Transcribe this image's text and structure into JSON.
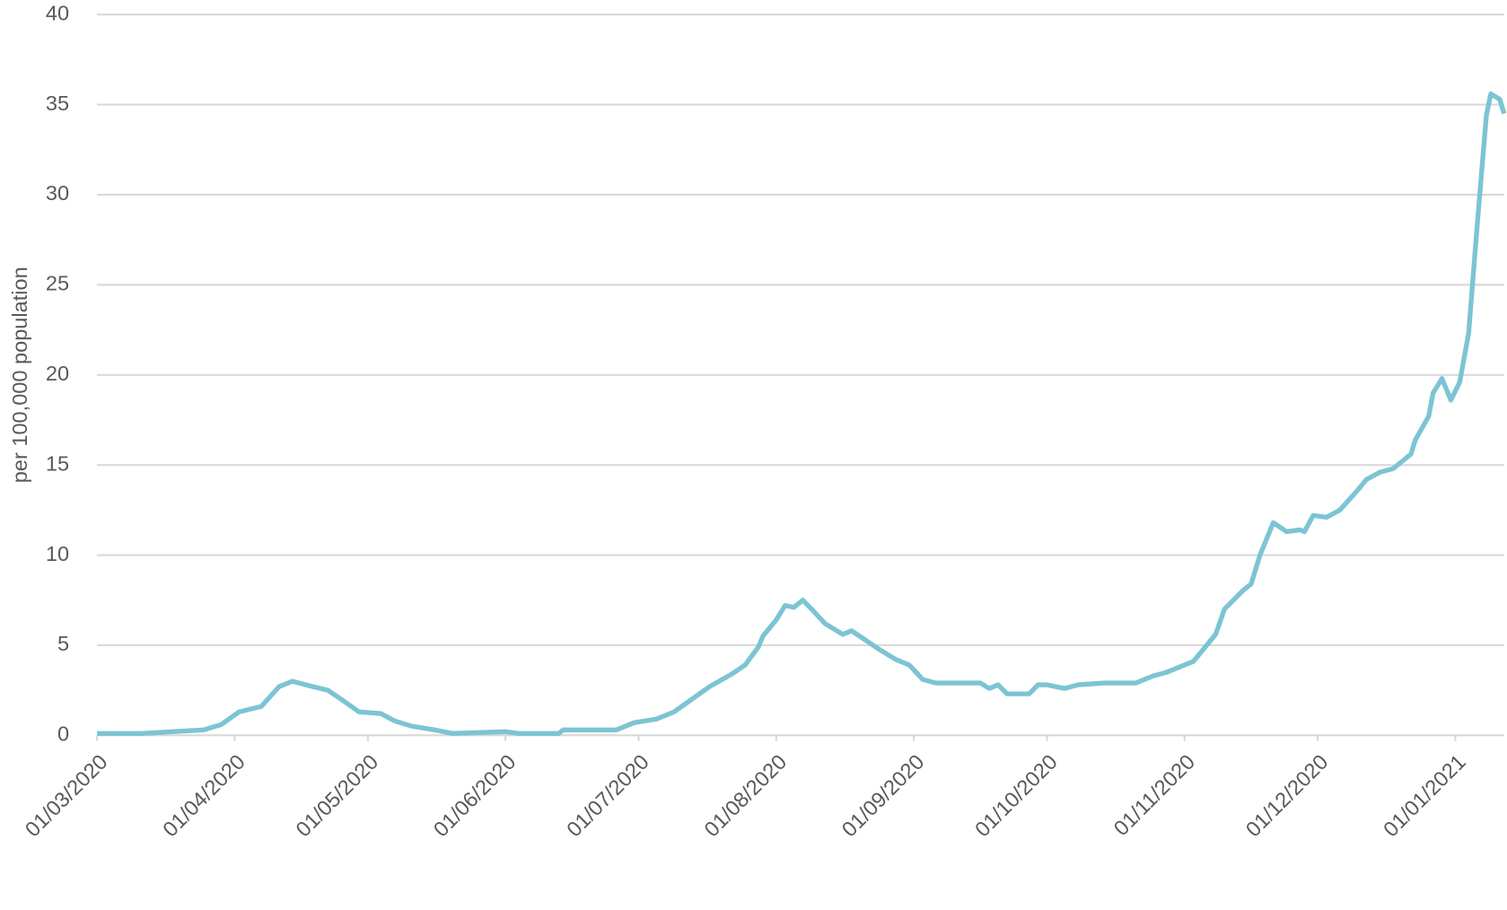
{
  "chart_data": {
    "type": "line",
    "y_label": "per 100,000 population",
    "x": [
      "01/03/2020",
      "11/03/2020",
      "25/03/2020",
      "29/03/2020",
      "02/04/2020",
      "07/04/2020",
      "11/04/2020",
      "14/04/2020",
      "17/04/2020",
      "22/04/2020",
      "25/04/2020",
      "29/04/2020",
      "04/05/2020",
      "07/05/2020",
      "11/05/2020",
      "16/05/2020",
      "20/05/2020",
      "01/06/2020",
      "04/06/2020",
      "13/06/2020",
      "14/06/2020",
      "26/06/2020",
      "30/06/2020",
      "05/07/2020",
      "09/07/2020",
      "13/07/2020",
      "17/07/2020",
      "22/07/2020",
      "25/07/2020",
      "28/07/2020",
      "29/07/2020",
      "01/08/2020",
      "03/08/2020",
      "05/08/2020",
      "07/08/2020",
      "09/08/2020",
      "12/08/2020",
      "16/08/2020",
      "18/08/2020",
      "21/08/2020",
      "24/08/2020",
      "28/08/2020",
      "31/08/2020",
      "03/09/2020",
      "06/09/2020",
      "16/09/2020",
      "18/09/2020",
      "20/09/2020",
      "22/09/2020",
      "27/09/2020",
      "29/09/2020",
      "01/10/2020",
      "05/10/2020",
      "08/10/2020",
      "14/10/2020",
      "21/10/2020",
      "25/10/2020",
      "28/10/2020",
      "01/11/2020",
      "03/11/2020",
      "06/11/2020",
      "08/11/2020",
      "10/11/2020",
      "14/11/2020",
      "16/11/2020",
      "18/11/2020",
      "20/11/2020",
      "21/11/2020",
      "24/11/2020",
      "27/11/2020",
      "28/11/2020",
      "30/11/2020",
      "03/12/2020",
      "06/12/2020",
      "10/12/2020",
      "12/12/2020",
      "15/12/2020",
      "18/12/2020",
      "22/12/2020",
      "23/12/2020",
      "26/12/2020",
      "27/12/2020",
      "29/12/2020",
      "31/12/2020",
      "02/01/2021",
      "04/01/2021",
      "06/01/2021",
      "08/01/2021",
      "09/01/2021",
      "11/01/2021",
      "12/01/2021"
    ],
    "series": [
      {
        "color": "#7cc4d4",
        "values": [
          0.1,
          0.1,
          0.3,
          0.6,
          1.3,
          1.6,
          2.7,
          3.0,
          2.8,
          2.5,
          2.0,
          1.3,
          1.2,
          0.8,
          0.5,
          0.3,
          0.1,
          0.2,
          0.1,
          0.1,
          0.3,
          0.3,
          0.7,
          0.9,
          1.3,
          2.0,
          2.7,
          3.4,
          3.9,
          4.9,
          5.5,
          6.4,
          7.2,
          7.1,
          7.5,
          7.0,
          6.2,
          5.6,
          5.8,
          5.3,
          4.8,
          4.2,
          3.9,
          3.1,
          2.9,
          2.9,
          2.6,
          2.8,
          2.3,
          2.3,
          2.8,
          2.8,
          2.6,
          2.8,
          2.9,
          2.9,
          3.3,
          3.5,
          3.9,
          4.1,
          5.0,
          5.6,
          7.0,
          8.0,
          8.4,
          10.0,
          11.2,
          11.8,
          11.3,
          11.4,
          11.3,
          12.2,
          12.1,
          12.5,
          13.6,
          14.2,
          14.6,
          14.8,
          15.6,
          16.4,
          17.7,
          19.0,
          19.8,
          18.6,
          19.6,
          22.3,
          28.5,
          34.4,
          35.6,
          35.3,
          34.5
        ]
      }
    ],
    "xlim": [
      "01/03/2020",
      "12/01/2021"
    ],
    "xticks": [
      "01/03/2020",
      "01/04/2020",
      "01/05/2020",
      "01/06/2020",
      "01/07/2020",
      "01/08/2020",
      "01/09/2020",
      "01/10/2020",
      "01/11/2020",
      "01/12/2020",
      "01/01/2021"
    ],
    "ylim": [
      0,
      40
    ],
    "yticks": [
      0,
      5,
      10,
      15,
      20,
      25,
      30,
      35,
      40
    ],
    "grid": true
  }
}
